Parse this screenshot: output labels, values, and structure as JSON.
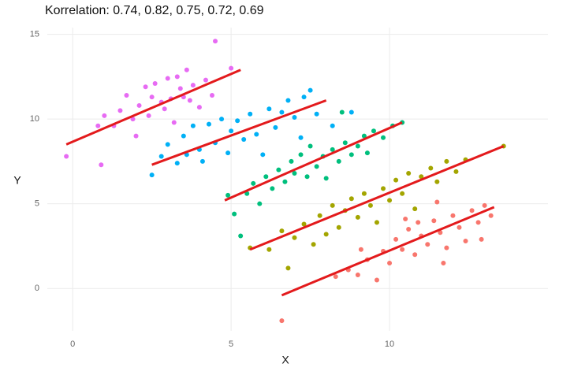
{
  "chart_data": {
    "type": "scatter",
    "title": "Korrelation: 0.74, 0.82, 0.75, 0.72, 0.69",
    "x_label": "X",
    "y_label": "Y",
    "xlim": [
      -0.8,
      15
    ],
    "ylim": [
      -2.5,
      15.4
    ],
    "xticks": [
      0,
      5,
      10
    ],
    "yticks": [
      0,
      5,
      10,
      15
    ],
    "grid": true,
    "series": [
      {
        "color": "#e76bf3",
        "x": [
          -0.2,
          0.8,
          0.9,
          1.0,
          1.3,
          1.5,
          1.7,
          1.9,
          2.0,
          2.1,
          2.3,
          2.4,
          2.5,
          2.6,
          2.8,
          2.9,
          3.0,
          3.1,
          3.2,
          3.3,
          3.4,
          3.5,
          3.6,
          3.7,
          3.8,
          4.0,
          4.2,
          4.4,
          4.5,
          5.0
        ],
        "values": [
          7.8,
          9.6,
          7.3,
          10.2,
          9.6,
          10.5,
          11.4,
          10.0,
          9.0,
          10.8,
          11.9,
          10.2,
          11.3,
          12.1,
          11.0,
          10.6,
          12.4,
          11.2,
          9.8,
          12.5,
          11.8,
          11.3,
          12.9,
          11.1,
          12.0,
          10.7,
          12.3,
          11.4,
          14.6,
          13.0
        ]
      },
      {
        "color": "#00b0f6",
        "x": [
          2.5,
          2.8,
          3.0,
          3.3,
          3.5,
          3.6,
          3.8,
          4.0,
          4.1,
          4.3,
          4.5,
          4.7,
          4.9,
          5.0,
          5.2,
          5.4,
          5.6,
          5.8,
          6.0,
          6.2,
          6.4,
          6.6,
          6.8,
          7.0,
          7.2,
          7.3,
          7.5,
          7.7,
          8.2,
          8.8
        ],
        "values": [
          6.7,
          7.8,
          8.5,
          7.4,
          9.0,
          7.9,
          9.6,
          8.2,
          7.5,
          9.7,
          8.6,
          10.0,
          8.0,
          9.3,
          9.9,
          8.8,
          10.3,
          9.1,
          7.9,
          10.6,
          9.5,
          10.4,
          11.1,
          10.1,
          8.9,
          11.3,
          11.7,
          10.3,
          9.6,
          10.4
        ]
      },
      {
        "color": "#00bf7d",
        "x": [
          4.9,
          5.1,
          5.3,
          5.5,
          5.7,
          5.9,
          6.1,
          6.3,
          6.5,
          6.7,
          6.9,
          7.0,
          7.2,
          7.4,
          7.5,
          7.7,
          7.9,
          8.0,
          8.2,
          8.4,
          8.6,
          8.8,
          9.0,
          9.2,
          9.3,
          9.5,
          9.8,
          10.1,
          10.4,
          8.5
        ],
        "values": [
          5.5,
          4.4,
          3.1,
          5.6,
          6.2,
          5.0,
          6.6,
          5.9,
          7.0,
          6.3,
          7.5,
          6.8,
          7.9,
          6.6,
          8.4,
          7.2,
          7.8,
          6.5,
          8.2,
          7.5,
          8.6,
          7.9,
          8.4,
          9.0,
          8.0,
          9.3,
          8.9,
          9.6,
          9.8,
          10.4
        ]
      },
      {
        "color": "#a3a500",
        "x": [
          5.6,
          6.2,
          6.6,
          6.8,
          7.0,
          7.3,
          7.6,
          7.8,
          8.0,
          8.2,
          8.4,
          8.6,
          8.8,
          9.0,
          9.2,
          9.4,
          9.6,
          9.8,
          10.0,
          10.2,
          10.4,
          10.6,
          10.8,
          11.0,
          11.3,
          11.5,
          11.8,
          12.1,
          12.4,
          13.6
        ],
        "values": [
          2.4,
          2.3,
          3.4,
          1.2,
          3.0,
          3.8,
          2.6,
          4.3,
          3.2,
          4.9,
          3.6,
          4.6,
          5.3,
          4.2,
          5.6,
          4.9,
          3.9,
          5.9,
          5.2,
          6.4,
          5.6,
          6.8,
          4.7,
          6.6,
          7.1,
          6.3,
          7.5,
          6.9,
          7.6,
          8.4
        ]
      },
      {
        "color": "#f8766d",
        "x": [
          6.6,
          8.3,
          8.7,
          9.0,
          9.3,
          9.6,
          9.8,
          10.0,
          10.2,
          10.4,
          10.6,
          10.8,
          11.0,
          11.2,
          11.4,
          11.6,
          11.8,
          12.0,
          12.2,
          12.4,
          12.6,
          12.8,
          13.0,
          13.2,
          11.5,
          10.5,
          9.1,
          12.9,
          11.7,
          10.9
        ],
        "values": [
          -1.9,
          0.7,
          1.1,
          0.8,
          1.7,
          0.5,
          2.2,
          1.5,
          2.9,
          2.3,
          3.5,
          2.0,
          3.1,
          2.6,
          4.0,
          3.3,
          2.4,
          4.3,
          3.6,
          2.8,
          4.6,
          3.9,
          4.9,
          4.3,
          5.1,
          4.1,
          2.3,
          2.9,
          1.5,
          3.9
        ]
      }
    ],
    "fit_lines": [
      {
        "color": "#e31a1c",
        "x": [
          -0.2,
          5.3
        ],
        "values": [
          8.5,
          12.9
        ]
      },
      {
        "color": "#e31a1c",
        "x": [
          2.5,
          8.0
        ],
        "values": [
          7.3,
          11.1
        ]
      },
      {
        "color": "#e31a1c",
        "x": [
          4.8,
          10.4
        ],
        "values": [
          5.2,
          9.8
        ]
      },
      {
        "color": "#e31a1c",
        "x": [
          5.6,
          13.6
        ],
        "values": [
          2.3,
          8.4
        ]
      },
      {
        "color": "#e31a1c",
        "x": [
          6.6,
          13.3
        ],
        "values": [
          -0.4,
          4.8
        ]
      }
    ]
  }
}
